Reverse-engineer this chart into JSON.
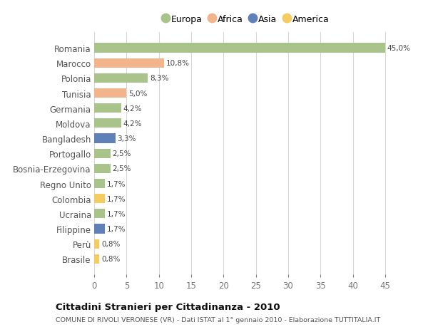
{
  "countries": [
    "Romania",
    "Marocco",
    "Polonia",
    "Tunisia",
    "Germania",
    "Moldova",
    "Bangladesh",
    "Portogallo",
    "Bosnia-Erzegovina",
    "Regno Unito",
    "Colombia",
    "Ucraina",
    "Filippine",
    "Perù",
    "Brasile"
  ],
  "values": [
    45.0,
    10.8,
    8.3,
    5.0,
    4.2,
    4.2,
    3.3,
    2.5,
    2.5,
    1.7,
    1.7,
    1.7,
    1.7,
    0.8,
    0.8
  ],
  "labels": [
    "45,0%",
    "10,8%",
    "8,3%",
    "5,0%",
    "4,2%",
    "4,2%",
    "3,3%",
    "2,5%",
    "2,5%",
    "1,7%",
    "1,7%",
    "1,7%",
    "1,7%",
    "0,8%",
    "0,8%"
  ],
  "continents": [
    "Europa",
    "Africa",
    "Europa",
    "Africa",
    "Europa",
    "Europa",
    "Asia",
    "Europa",
    "Europa",
    "Europa",
    "America",
    "Europa",
    "Asia",
    "America",
    "America"
  ],
  "colors": {
    "Europa": "#a8c48a",
    "Africa": "#f2b48a",
    "Asia": "#6080b8",
    "America": "#f5cc60"
  },
  "legend_order": [
    "Europa",
    "Africa",
    "Asia",
    "America"
  ],
  "title": "Cittadini Stranieri per Cittadinanza - 2010",
  "subtitle": "COMUNE DI RIVOLI VERONESE (VR) - Dati ISTAT al 1° gennaio 2010 - Elaborazione TUTTITALIA.IT",
  "xlim": [
    0,
    47
  ],
  "xticks": [
    0,
    5,
    10,
    15,
    20,
    25,
    30,
    35,
    40,
    45
  ],
  "bg_color": "#ffffff",
  "grid_color": "#d8d8d8"
}
